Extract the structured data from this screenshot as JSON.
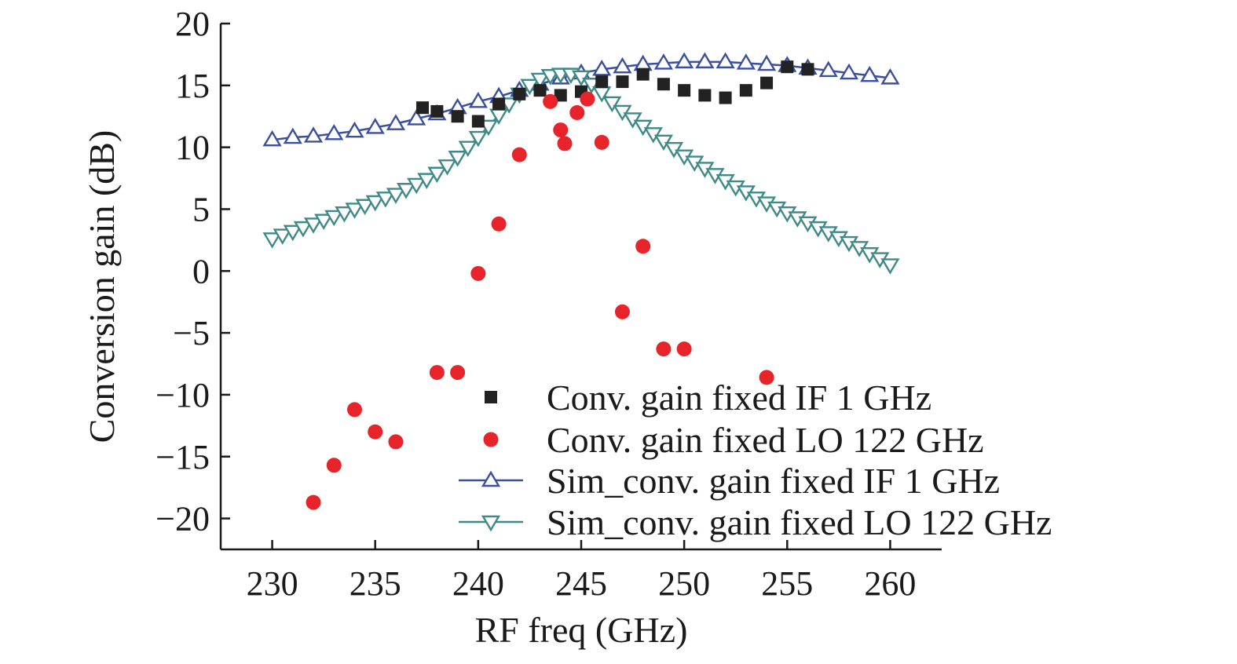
{
  "chart_data": {
    "type": "scatter",
    "xlabel": "RF freq (GHz)",
    "ylabel": "Conversion gain (dB)",
    "xlim": [
      227.5,
      262.5
    ],
    "ylim": [
      -22.5,
      20
    ],
    "xticks": [
      230,
      235,
      240,
      245,
      250,
      255,
      260
    ],
    "yticks": [
      20,
      15,
      10,
      5,
      0,
      -5,
      -10,
      -15,
      -20
    ],
    "xtick_labels": [
      "230",
      "235",
      "240",
      "245",
      "250",
      "255",
      "260"
    ],
    "ytick_labels": [
      "20",
      "15",
      "10",
      "5",
      "0",
      "−5",
      "−10",
      "−15",
      "−20"
    ],
    "grid": false,
    "legend_position": "bottom-right",
    "series": [
      {
        "name": "Conv. gain fixed IF 1 GHz",
        "marker": "square",
        "color": "#222222",
        "line": false,
        "x": [
          237.3,
          238,
          239,
          240,
          241,
          242,
          243,
          244,
          245,
          246,
          247,
          248,
          249,
          250,
          251,
          252,
          253,
          254,
          255,
          256
        ],
        "y": [
          13.2,
          12.9,
          12.5,
          12.1,
          13.5,
          14.3,
          14.6,
          14.2,
          14.5,
          15.3,
          15.3,
          15.9,
          15.1,
          14.6,
          14.2,
          14.0,
          14.6,
          15.2,
          16.5,
          16.3
        ]
      },
      {
        "name": "Conv. gain fixed LO 122 GHz",
        "marker": "circle",
        "color": "#e8242b",
        "line": false,
        "x": [
          232,
          233,
          234,
          235,
          236,
          238,
          239,
          240,
          241,
          242,
          243.5,
          244,
          244.2,
          244.8,
          245.3,
          246,
          247,
          248,
          249,
          250,
          254
        ],
        "y": [
          -18.7,
          -15.7,
          -11.2,
          -13.0,
          -13.8,
          -8.2,
          -8.2,
          -0.2,
          3.8,
          9.4,
          13.7,
          11.4,
          10.3,
          12.8,
          13.9,
          10.4,
          -3.3,
          2.0,
          -6.3,
          -6.3,
          -8.6
        ]
      },
      {
        "name": "Sim_conv. gain fixed IF 1 GHz",
        "marker": "triangle-up",
        "color": "#3b4fa0",
        "line": true,
        "x": [
          230,
          231,
          232,
          233,
          234,
          235,
          236,
          237,
          238,
          239,
          240,
          241,
          242,
          243,
          244,
          245,
          246,
          247,
          248,
          249,
          250,
          251,
          252,
          253,
          254,
          255,
          256,
          257,
          258,
          259,
          260
        ],
        "y": [
          10.6,
          10.8,
          10.9,
          11.1,
          11.3,
          11.6,
          11.9,
          12.3,
          12.7,
          13.2,
          13.7,
          14.1,
          14.6,
          15.1,
          15.6,
          16.0,
          16.3,
          16.5,
          16.7,
          16.8,
          16.9,
          16.9,
          16.9,
          16.8,
          16.7,
          16.6,
          16.4,
          16.2,
          16.0,
          15.8,
          15.6
        ]
      },
      {
        "name": "Sim_conv. gain fixed LO 122 GHz",
        "marker": "triangle-down",
        "color": "#3f8a88",
        "line": true,
        "x": [
          230,
          230.5,
          231,
          231.5,
          232,
          232.5,
          233,
          233.5,
          234,
          234.5,
          235,
          235.5,
          236,
          236.5,
          237,
          237.5,
          238,
          238.5,
          239,
          239.5,
          240,
          240.5,
          241,
          241.5,
          242,
          242.5,
          243,
          243.5,
          244,
          244.5,
          245,
          245.5,
          246,
          246.5,
          247,
          247.5,
          248,
          248.5,
          249,
          249.5,
          250,
          250.5,
          251,
          251.5,
          252,
          252.5,
          253,
          253.5,
          254,
          254.5,
          255,
          255.5,
          256,
          256.5,
          257,
          257.5,
          258,
          258.5,
          259,
          259.5,
          260
        ],
        "y": [
          2.6,
          2.9,
          3.2,
          3.5,
          3.8,
          4.1,
          4.4,
          4.7,
          5.0,
          5.3,
          5.6,
          5.9,
          6.2,
          6.6,
          7.0,
          7.4,
          7.9,
          8.5,
          9.2,
          10.0,
          10.8,
          11.7,
          12.6,
          13.5,
          14.3,
          15.0,
          15.5,
          15.8,
          15.9,
          15.9,
          15.7,
          15.1,
          14.4,
          13.6,
          12.9,
          12.3,
          11.7,
          11.1,
          10.5,
          9.9,
          9.3,
          8.8,
          8.3,
          7.8,
          7.3,
          6.8,
          6.4,
          5.9,
          5.5,
          5.1,
          4.7,
          4.3,
          3.9,
          3.5,
          3.1,
          2.7,
          2.3,
          1.9,
          1.4,
          1.0,
          0.5
        ]
      }
    ]
  }
}
